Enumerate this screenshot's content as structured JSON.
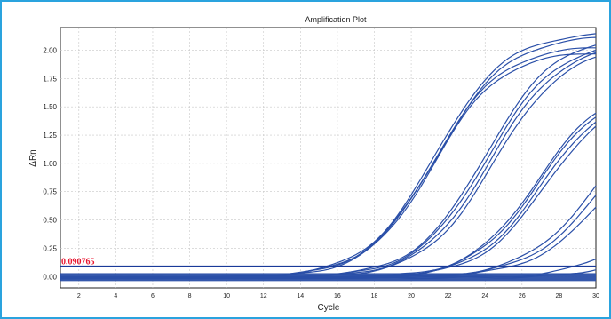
{
  "chart_data": {
    "type": "line",
    "title": "Amplification Plot",
    "xlabel": "Cycle",
    "ylabel": "ΔRn",
    "xlim": [
      1,
      30
    ],
    "ylim": [
      -0.1,
      2.2
    ],
    "x_ticks": [
      2,
      4,
      6,
      8,
      10,
      12,
      14,
      16,
      18,
      20,
      22,
      24,
      26,
      28,
      30
    ],
    "y_ticks": [
      "0.00",
      "0.25",
      "0.50",
      "0.75",
      "1.00",
      "1.25",
      "1.50",
      "1.75",
      "2.00"
    ],
    "grid": true,
    "threshold": {
      "value": 0.090765,
      "label": "0.090765",
      "color": "#e8152f"
    },
    "line_color": "#2a4fa8",
    "series": [
      {
        "plateau": 2.17,
        "midpoint": 21.3,
        "slope": 1.9
      },
      {
        "plateau": 2.14,
        "midpoint": 21.4,
        "slope": 1.9
      },
      {
        "plateau": 2.05,
        "midpoint": 21.2,
        "slope": 1.85
      },
      {
        "plateau": 2.0,
        "midpoint": 21.2,
        "slope": 1.8
      },
      {
        "plateau": 2.15,
        "midpoint": 24.0,
        "slope": 1.9
      },
      {
        "plateau": 2.1,
        "midpoint": 24.1,
        "slope": 1.9
      },
      {
        "plateau": 2.08,
        "midpoint": 24.3,
        "slope": 1.9
      },
      {
        "plateau": 2.05,
        "midpoint": 24.5,
        "slope": 1.9
      },
      {
        "plateau": 1.7,
        "midpoint": 26.8,
        "slope": 1.8
      },
      {
        "plateau": 1.68,
        "midpoint": 26.9,
        "slope": 1.8
      },
      {
        "plateau": 1.66,
        "midpoint": 27.1,
        "slope": 1.8
      },
      {
        "plateau": 1.64,
        "midpoint": 27.3,
        "slope": 1.8
      },
      {
        "plateau": 1.7,
        "midpoint": 30.2,
        "slope": 2.0
      },
      {
        "plateau": 1.6,
        "midpoint": 30.4,
        "slope": 2.0
      },
      {
        "plateau": 1.5,
        "midpoint": 30.7,
        "slope": 2.0
      },
      {
        "plateau": 0.6,
        "midpoint": 31.5,
        "slope": 1.6
      },
      {
        "plateau": 0.4,
        "midpoint": 32.0,
        "slope": 1.4
      }
    ]
  }
}
